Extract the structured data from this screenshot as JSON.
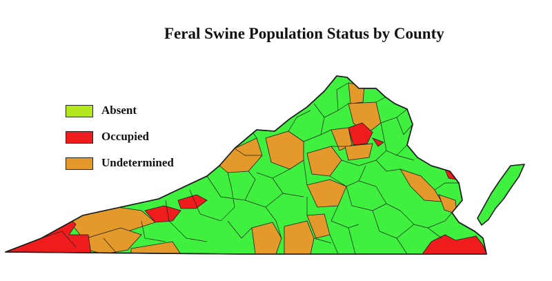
{
  "map": {
    "title": "Feral Swine Population Status by County",
    "legend": [
      {
        "key": "absent",
        "label": "Absent",
        "color": "#b4e61e"
      },
      {
        "key": "occupied",
        "label": "Occupied",
        "color": "#ee1c1c"
      },
      {
        "key": "undetermined",
        "label": "Undetermined",
        "color": "#e39a2a"
      }
    ],
    "colors": {
      "absent_fill": "#3ff03f",
      "occupied_fill": "#ee1c1c",
      "undetermined_fill": "#e39a2a",
      "border": "#1a1a1a"
    }
  }
}
